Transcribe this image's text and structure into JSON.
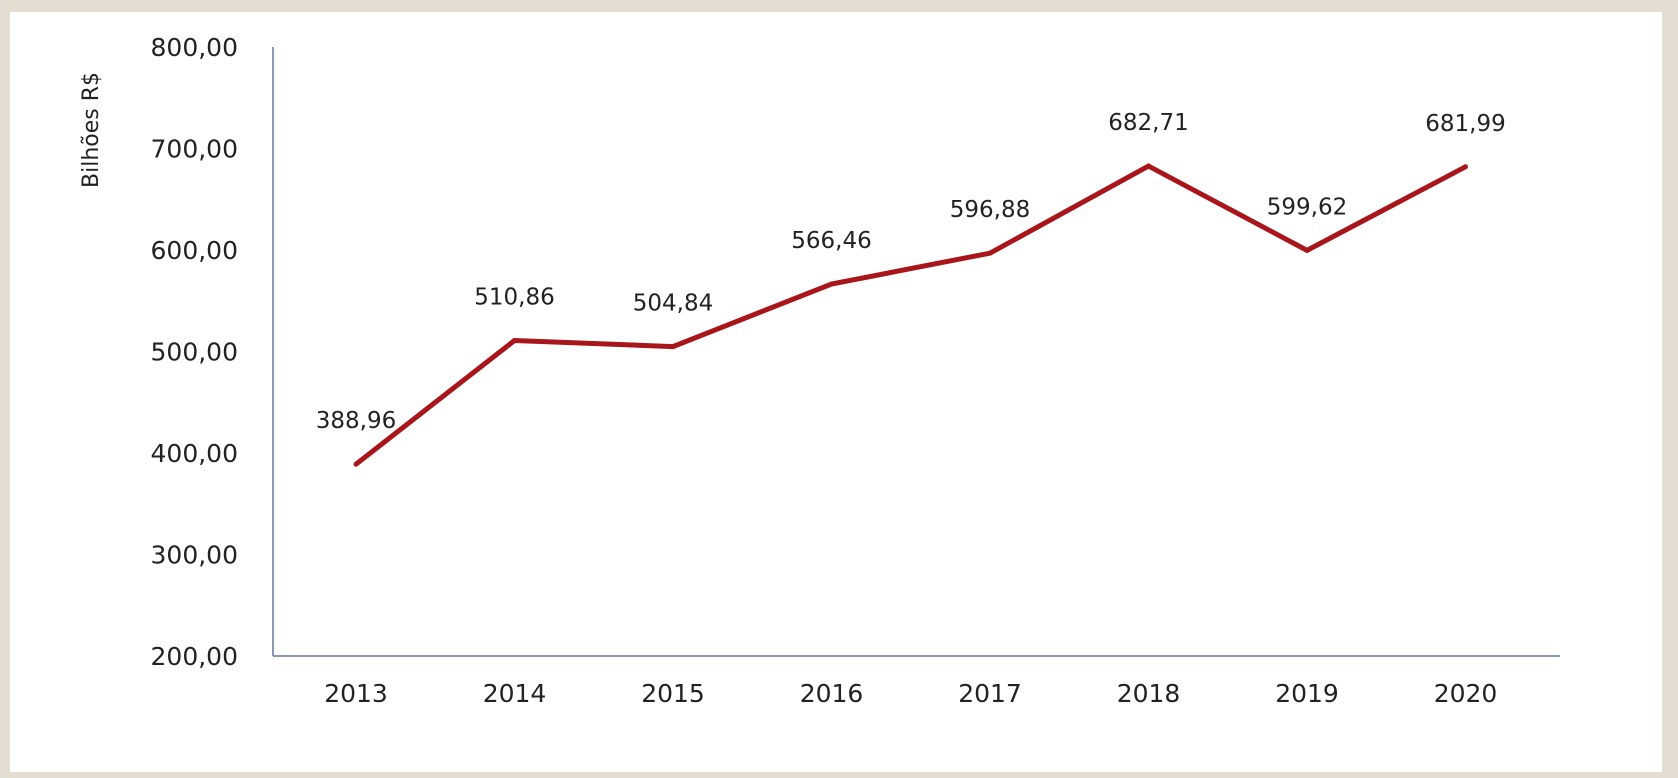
{
  "chart_data": {
    "type": "line",
    "title": "",
    "xlabel": "",
    "ylabel": "Bilhões R$",
    "ylim": [
      200,
      800
    ],
    "yticks": [
      200,
      300,
      400,
      500,
      600,
      700,
      800
    ],
    "ytick_labels": [
      "200,00",
      "300,00",
      "400,00",
      "500,00",
      "600,00",
      "700,00",
      "800,00"
    ],
    "grid": false,
    "legend": "none",
    "categories": [
      "2013",
      "2014",
      "2015",
      "2016",
      "2017",
      "2018",
      "2019",
      "2020"
    ],
    "series": [
      {
        "values": [
          388.96,
          510.86,
          504.84,
          566.46,
          596.88,
          682.71,
          599.62,
          681.99
        ],
        "labels": [
          "388,96",
          "510,86",
          "504,84",
          "566,46",
          "596,88",
          "682,71",
          "599,62",
          "681,99"
        ],
        "color": "#a8161c"
      }
    ]
  }
}
